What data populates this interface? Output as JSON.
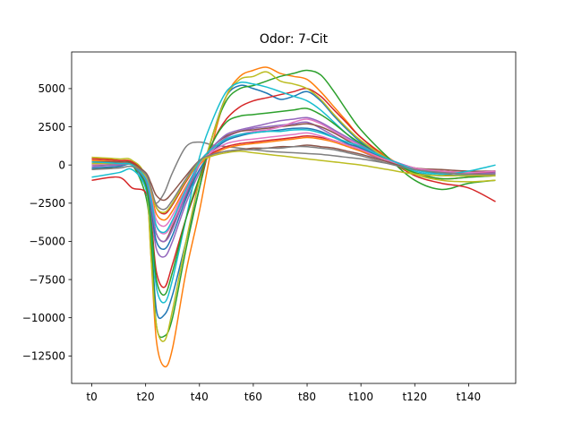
{
  "chart_data": {
    "type": "line",
    "title": "Odor: 7-Cit",
    "xlabel": "",
    "ylabel": "",
    "xlim": [
      -7.5,
      157.5
    ],
    "ylim": [
      -14300,
      7400
    ],
    "x_ticks": [
      0,
      20,
      40,
      60,
      80,
      100,
      120,
      140
    ],
    "x_tick_labels": [
      "t0",
      "t20",
      "t40",
      "t60",
      "t80",
      "t100",
      "t120",
      "t140"
    ],
    "y_ticks": [
      -12500,
      -10000,
      -7500,
      -5000,
      -2500,
      0,
      2500,
      5000
    ],
    "y_tick_labels": [
      "−12500",
      "−10000",
      "−7500",
      "−5000",
      "−2500",
      "0",
      "2500",
      "5000"
    ],
    "grid": false,
    "legend": "none",
    "series_colors": [
      "#1f77b4",
      "#ff7f0e",
      "#2ca02c",
      "#d62728",
      "#9467bd",
      "#8c564b",
      "#e377c2",
      "#7f7f7f",
      "#bcbd22",
      "#17becf"
    ],
    "x": [
      0,
      10,
      15,
      20,
      22,
      24,
      27,
      30,
      35,
      40,
      45,
      50,
      55,
      60,
      65,
      70,
      75,
      80,
      85,
      90,
      95,
      100,
      110,
      120,
      130,
      140,
      150
    ],
    "series": [
      {
        "color": "#1f77b4",
        "values": [
          200,
          100,
          0,
          -1500,
          -4500,
          -9500,
          -9800,
          -8500,
          -5000,
          -1500,
          2000,
          4500,
          5200,
          5000,
          4700,
          4300,
          4500,
          4800,
          4200,
          3200,
          2300,
          1500,
          300,
          -500,
          -700,
          -600,
          -400
        ]
      },
      {
        "color": "#ff7f0e",
        "values": [
          500,
          300,
          200,
          -1000,
          -6000,
          -11500,
          -13200,
          -12000,
          -7000,
          -3000,
          1500,
          4500,
          5800,
          6200,
          6400,
          6000,
          5800,
          5600,
          4800,
          3800,
          2800,
          1800,
          500,
          -500,
          -900,
          -800,
          -700
        ]
      },
      {
        "color": "#2ca02c",
        "values": [
          -300,
          -100,
          0,
          -2000,
          -5000,
          -10500,
          -11200,
          -10000,
          -5500,
          -1500,
          2000,
          4200,
          5000,
          5200,
          5500,
          5800,
          6000,
          6200,
          5900,
          4800,
          3500,
          2300,
          500,
          -1000,
          -1600,
          -1200,
          -1000
        ]
      },
      {
        "color": "#d62728",
        "values": [
          -1000,
          -800,
          -1500,
          -1800,
          -3500,
          -7000,
          -8000,
          -6500,
          -3500,
          -1000,
          1500,
          3000,
          3800,
          4200,
          4400,
          4600,
          4800,
          5000,
          4500,
          3600,
          2700,
          1800,
          400,
          -700,
          -1200,
          -1500,
          -2400
        ]
      },
      {
        "color": "#9467bd",
        "values": [
          0,
          0,
          0,
          -1200,
          -3000,
          -5500,
          -6000,
          -5000,
          -2500,
          -500,
          1000,
          1800,
          2200,
          2400,
          2500,
          2600,
          2700,
          2800,
          2400,
          1900,
          1400,
          900,
          200,
          -300,
          -500,
          -600,
          -500
        ]
      },
      {
        "color": "#8c564b",
        "values": [
          100,
          200,
          100,
          -900,
          -2500,
          -4500,
          -5000,
          -4000,
          -2000,
          0,
          1200,
          1900,
          2200,
          2300,
          2400,
          2500,
          2600,
          2700,
          2500,
          2100,
          1600,
          1100,
          300,
          -300,
          -600,
          -700,
          -600
        ]
      },
      {
        "color": "#e377c2",
        "values": [
          200,
          200,
          100,
          -800,
          -2200,
          -4000,
          -4500,
          -3800,
          -1800,
          0,
          1000,
          1700,
          2000,
          2200,
          2300,
          2500,
          2800,
          3000,
          2700,
          2200,
          1700,
          1200,
          400,
          -200,
          -500,
          -600,
          -600
        ]
      },
      {
        "color": "#7f7f7f",
        "values": [
          300,
          200,
          0,
          -1000,
          -2000,
          -2500,
          -1800,
          -500,
          1200,
          1500,
          1300,
          1200,
          1100,
          1000,
          900,
          850,
          800,
          750,
          700,
          600,
          500,
          400,
          100,
          -200,
          -400,
          -500,
          -500
        ]
      },
      {
        "color": "#bcbd22",
        "values": [
          500,
          400,
          300,
          -1000,
          -6000,
          -10500,
          -11500,
          -9500,
          -5000,
          -1000,
          2000,
          4500,
          5600,
          5800,
          6100,
          5500,
          5300,
          5000,
          4300,
          3300,
          2400,
          1600,
          400,
          -600,
          -1000,
          -1100,
          -1000
        ]
      },
      {
        "color": "#17becf",
        "values": [
          -800,
          -500,
          -300,
          -1500,
          -4000,
          -8000,
          -9000,
          -7500,
          -3500,
          500,
          3000,
          4800,
          5400,
          5300,
          5100,
          4800,
          4500,
          4200,
          3600,
          2800,
          2000,
          1300,
          300,
          -400,
          -700,
          -600,
          -400
        ]
      },
      {
        "color": "#1f77b4",
        "values": [
          -200,
          -100,
          0,
          -1100,
          -2800,
          -5000,
          -5500,
          -4600,
          -2200,
          -300,
          900,
          1600,
          1900,
          2100,
          2200,
          2300,
          2400,
          2400,
          2200,
          1800,
          1400,
          1100,
          300,
          -300,
          -500,
          -500,
          -400
        ]
      },
      {
        "color": "#ff7f0e",
        "values": [
          300,
          200,
          100,
          -700,
          -1800,
          -3200,
          -3600,
          -3000,
          -1400,
          0,
          700,
          1100,
          1300,
          1400,
          1500,
          1600,
          1700,
          1800,
          1700,
          1500,
          1200,
          900,
          300,
          -200,
          -400,
          -500,
          -400
        ]
      },
      {
        "color": "#2ca02c",
        "values": [
          0,
          100,
          100,
          -1300,
          -3800,
          -7500,
          -8500,
          -7000,
          -3500,
          -800,
          1500,
          2800,
          3200,
          3300,
          3400,
          3500,
          3600,
          3700,
          3300,
          2700,
          2000,
          1400,
          300,
          -500,
          -900,
          -800,
          -700
        ]
      },
      {
        "color": "#d62728",
        "values": [
          400,
          300,
          200,
          -600,
          -1500,
          -2800,
          -3200,
          -2600,
          -1100,
          200,
          800,
          1200,
          1400,
          1500,
          1600,
          1700,
          1800,
          1900,
          1800,
          1600,
          1300,
          1000,
          300,
          -200,
          -400,
          -500,
          -500
        ]
      },
      {
        "color": "#9467bd",
        "values": [
          -100,
          0,
          0,
          -1000,
          -2500,
          -4500,
          -5000,
          -4200,
          -1900,
          100,
          1200,
          2000,
          2300,
          2500,
          2700,
          2900,
          3000,
          3100,
          2800,
          2300,
          1800,
          1300,
          400,
          -200,
          -500,
          -600,
          -500
        ]
      },
      {
        "color": "#8c564b",
        "values": [
          200,
          200,
          100,
          -500,
          -1200,
          -2000,
          -2300,
          -1800,
          -700,
          300,
          700,
          900,
          1000,
          1100,
          1100,
          1200,
          1200,
          1300,
          1200,
          1100,
          900,
          700,
          200,
          -200,
          -300,
          -400,
          -400
        ]
      },
      {
        "color": "#e377c2",
        "values": [
          0,
          100,
          0,
          -800,
          -2000,
          -3600,
          -4000,
          -3300,
          -1500,
          100,
          900,
          1400,
          1600,
          1700,
          1800,
          1900,
          2000,
          2100,
          1900,
          1600,
          1300,
          1000,
          300,
          -200,
          -400,
          -500,
          -400
        ]
      },
      {
        "color": "#bcbd22",
        "values": [
          100,
          100,
          0,
          -700,
          -1600,
          -2800,
          -3100,
          -2500,
          -1000,
          200,
          600,
          800,
          900,
          800,
          700,
          600,
          500,
          400,
          300,
          200,
          100,
          0,
          -300,
          -600,
          -700,
          -700,
          -700
        ]
      },
      {
        "color": "#17becf",
        "values": [
          200,
          100,
          0,
          -900,
          -2200,
          -4000,
          -4400,
          -3600,
          -1600,
          200,
          1100,
          1700,
          2000,
          2100,
          2200,
          2200,
          2300,
          2300,
          2100,
          1800,
          1500,
          1200,
          400,
          -300,
          -600,
          -400,
          0
        ]
      },
      {
        "color": "#7f7f7f",
        "values": [
          -300,
          -200,
          -100,
          -600,
          -1500,
          -2600,
          -2900,
          -2300,
          -900,
          300,
          700,
          900,
          1000,
          1000,
          1100,
          1100,
          1200,
          1200,
          1100,
          1000,
          800,
          600,
          100,
          -300,
          -500,
          -600,
          -600
        ]
      }
    ]
  }
}
